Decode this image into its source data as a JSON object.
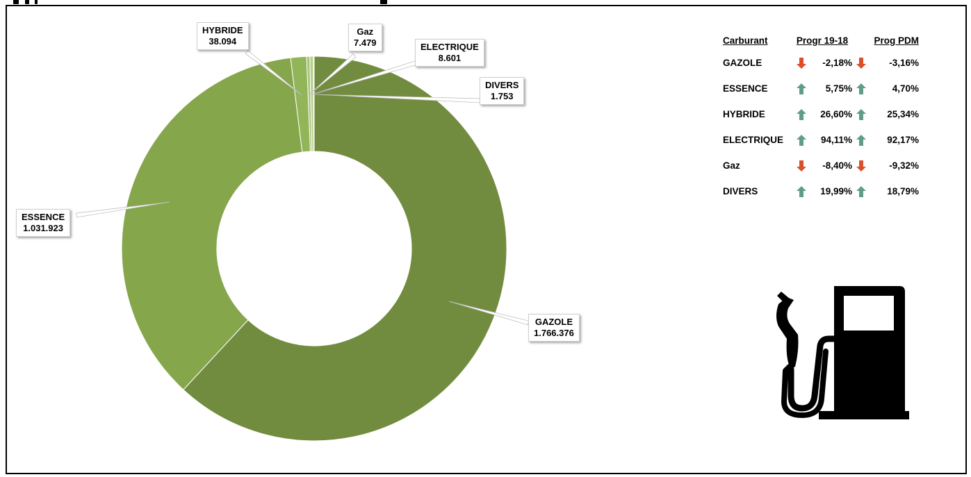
{
  "chart_data": {
    "type": "pie",
    "variant": "donut",
    "slices": [
      {
        "name": "GAZOLE",
        "value_label": "1.766.376",
        "value": 1766376,
        "color": "#728c3f"
      },
      {
        "name": "ESSENCE",
        "value_label": "1.031.923",
        "value": 1031923,
        "color": "#86a64c"
      },
      {
        "name": "HYBRIDE",
        "value_label": "38.094",
        "value": 38094,
        "color": "#93b55a"
      },
      {
        "name": "Gaz",
        "value_label": "7.479",
        "value": 7479,
        "color": "#a5c47b"
      },
      {
        "name": "ELECTRIQUE",
        "value_label": "8.601",
        "value": 8601,
        "color": "#b8d08d"
      },
      {
        "name": "DIVERS",
        "value_label": "1.753",
        "value": 1753,
        "color": "#cbdcaa"
      }
    ]
  },
  "table": {
    "headers": {
      "carburant": "Carburant",
      "progr": "Progr 19-18",
      "pdm": "Prog PDM"
    },
    "rows": [
      {
        "name": "GAZOLE",
        "progr": "-2,18%",
        "progr_dir": "down",
        "pdm": "-3,16%",
        "pdm_dir": "down"
      },
      {
        "name": "ESSENCE",
        "progr": "5,75%",
        "progr_dir": "up",
        "pdm": "4,70%",
        "pdm_dir": "up"
      },
      {
        "name": "HYBRIDE",
        "progr": "26,60%",
        "progr_dir": "up",
        "pdm": "25,34%",
        "pdm_dir": "up"
      },
      {
        "name": "ELECTRIQUE",
        "progr": "94,11%",
        "progr_dir": "up",
        "pdm": "92,17%",
        "pdm_dir": "up"
      },
      {
        "name": "Gaz",
        "progr": "-8,40%",
        "progr_dir": "down",
        "pdm": "-9,32%",
        "pdm_dir": "down"
      },
      {
        "name": "DIVERS",
        "progr": "19,99%",
        "progr_dir": "up",
        "pdm": "18,79%",
        "pdm_dir": "up"
      }
    ]
  },
  "colors": {
    "arrow_up": "#5e9e86",
    "arrow_down": "#d9502a",
    "border": "#000000"
  },
  "icons": {
    "illustration": "fuel-pump-icon"
  }
}
